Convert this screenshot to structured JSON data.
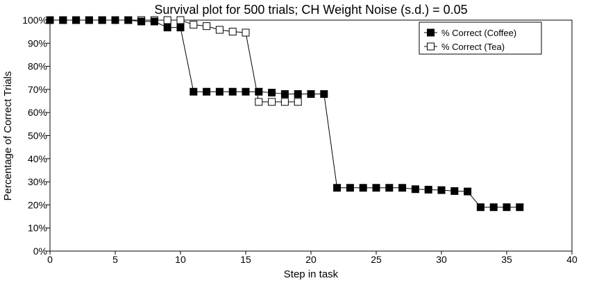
{
  "chart_data": {
    "type": "line",
    "title": "Survival plot for 500 trials; CH Weight Noise (s.d.) = 0.05",
    "xlabel": "Step in task",
    "ylabel": "Percentage of Correct Trials",
    "xlim": [
      0,
      40
    ],
    "ylim": [
      0,
      100
    ],
    "x_ticks": [
      "0",
      "5",
      "10",
      "15",
      "20",
      "25",
      "30",
      "35",
      "40"
    ],
    "y_ticks": [
      "0%",
      "10%",
      "20%",
      "30%",
      "40%",
      "50%",
      "60%",
      "70%",
      "80%",
      "90%",
      "100%"
    ],
    "grid": false,
    "legend_position": "top-right",
    "series": [
      {
        "name": "% Correct (Coffee)",
        "marker": "filled-square",
        "color": "#000000",
        "x": [
          0,
          1,
          2,
          3,
          4,
          5,
          6,
          7,
          8,
          9,
          10,
          11,
          12,
          13,
          14,
          15,
          16,
          17,
          18,
          19,
          20,
          21,
          22,
          23,
          24,
          25,
          26,
          27,
          28,
          29,
          30,
          31,
          32,
          33,
          34,
          35,
          36
        ],
        "y": [
          100,
          100,
          100,
          100,
          100,
          100,
          100,
          99.4,
          99.4,
          96.8,
          96.8,
          69,
          69,
          69,
          69,
          69,
          69,
          68.6,
          68,
          68,
          68,
          68,
          27.4,
          27.4,
          27.4,
          27.4,
          27.4,
          27.4,
          26.8,
          26.6,
          26.4,
          26,
          25.8,
          19,
          19,
          19,
          19
        ]
      },
      {
        "name": "% Correct (Tea)",
        "marker": "open-square",
        "color": "#000000",
        "x": [
          0,
          1,
          2,
          3,
          4,
          5,
          6,
          7,
          8,
          9,
          10,
          11,
          12,
          13,
          14,
          15,
          16,
          17,
          18,
          19
        ],
        "y": [
          100,
          100,
          100,
          100,
          100,
          100,
          100,
          100,
          100,
          100,
          100,
          98,
          97.4,
          95.8,
          95,
          94.6,
          64.6,
          64.6,
          64.6,
          64.6
        ]
      }
    ]
  }
}
